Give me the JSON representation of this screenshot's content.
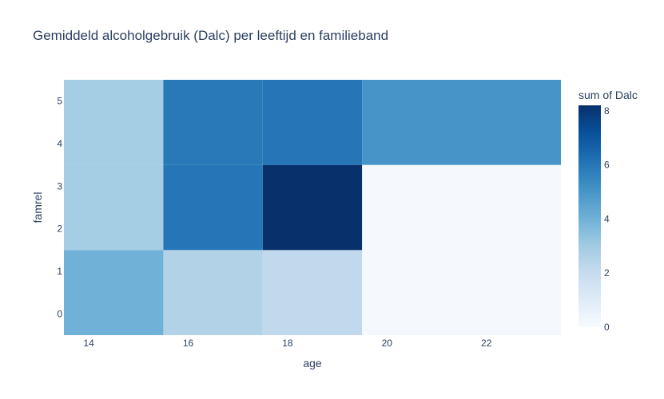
{
  "chart_data": {
    "type": "heatmap",
    "title": "Gemiddeld alcoholgebruik (Dalc) per leeftijd en familieband",
    "xlabel": "age",
    "ylabel": "famrel",
    "colorbar_title": "sum of Dalc",
    "x_ticks": [
      14,
      16,
      18,
      20,
      22
    ],
    "y_ticks": [
      0,
      1,
      2,
      3,
      4,
      5
    ],
    "colorbar_ticks": [
      0,
      2,
      4,
      6,
      8
    ],
    "zlim": [
      0,
      8.2
    ],
    "x_bins": [
      [
        13.5,
        15.5
      ],
      [
        15.5,
        17.5
      ],
      [
        17.5,
        19.5
      ],
      [
        19.5,
        23.5
      ]
    ],
    "y_bins": [
      [
        -0.5,
        1.5
      ],
      [
        1.5,
        3.5
      ],
      [
        3.5,
        5.5
      ]
    ],
    "z": [
      [
        4.0,
        2.6,
        2.2,
        0.1
      ],
      [
        2.9,
        6.0,
        8.2,
        0.1
      ],
      [
        2.9,
        5.9,
        6.0,
        5.0
      ]
    ],
    "colorscale": "Blues",
    "xlim": [
      13.5,
      23.5
    ],
    "ylim": [
      -0.5,
      5.5
    ],
    "colors": {
      "text": "#2a3f5f",
      "background": "#ffffff"
    }
  }
}
